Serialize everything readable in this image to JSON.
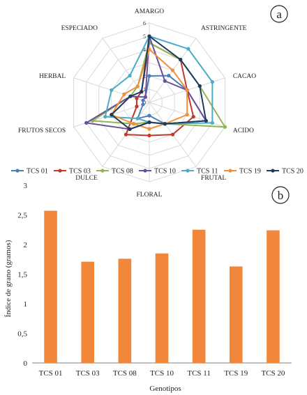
{
  "chart_data": [
    {
      "type": "radar",
      "panel_label": "a",
      "axes": [
        "AMARGO",
        "ASTRINGENTE",
        "CACAO",
        "ACIDO",
        "FRUTAL",
        "FLORAL",
        "DULCE",
        "FRUTOS SECOS",
        "HERBAL",
        "ESPECIADO"
      ],
      "rlim": [
        0,
        6
      ],
      "r_ticks": [
        "0",
        "1",
        "2",
        "3",
        "4",
        "5",
        "6"
      ],
      "series": [
        {
          "name": "TCS 01",
          "color": "#4a7ebb",
          "values": [
            2.0,
            2.5,
            3.0,
            4.5,
            2.0,
            1.0,
            1.5,
            0.5,
            0.5,
            0.5
          ]
        },
        {
          "name": "TCS 03",
          "color": "#c0392b",
          "values": [
            4.5,
            4.0,
            3.0,
            3.5,
            3.0,
            2.5,
            3.0,
            1.0,
            1.0,
            1.0
          ]
        },
        {
          "name": "TCS 08",
          "color": "#92b550",
          "values": [
            4.5,
            4.0,
            4.0,
            6.0,
            2.0,
            1.5,
            2.0,
            4.5,
            1.5,
            1.5
          ]
        },
        {
          "name": "TCS 10",
          "color": "#6b4f9e",
          "values": [
            5.0,
            2.0,
            3.0,
            4.5,
            2.0,
            1.5,
            2.5,
            5.0,
            1.5,
            0.5
          ]
        },
        {
          "name": "TCS 11",
          "color": "#4aacc5",
          "values": [
            5.0,
            5.0,
            5.0,
            5.0,
            2.0,
            1.5,
            1.5,
            3.5,
            3.0,
            2.5
          ]
        },
        {
          "name": "TCS 19",
          "color": "#f0913a",
          "values": [
            4.0,
            3.0,
            3.0,
            3.0,
            2.0,
            2.0,
            2.0,
            3.0,
            2.0,
            1.5
          ]
        },
        {
          "name": "TCS 20",
          "color": "#1f3b5c",
          "values": [
            5.0,
            4.0,
            4.0,
            4.5,
            2.0,
            1.5,
            2.5,
            3.0,
            1.5,
            1.0
          ]
        }
      ]
    },
    {
      "type": "bar",
      "panel_label": "b",
      "categories": [
        "TCS 01",
        "TCS 03",
        "TCS 08",
        "TCS 10",
        "TCS 11",
        "TCS 19",
        "TCS 20"
      ],
      "values": [
        2.57,
        1.71,
        1.76,
        1.85,
        2.25,
        1.63,
        2.24
      ],
      "ylabel": "Índice de grano (gramos)",
      "xlabel": "Genotipos",
      "ylim": [
        0,
        3
      ],
      "yticks": [
        "0",
        "0,5",
        "1",
        "1,5",
        "2",
        "2,5",
        "3"
      ],
      "bar_color": "#f0873a"
    }
  ]
}
